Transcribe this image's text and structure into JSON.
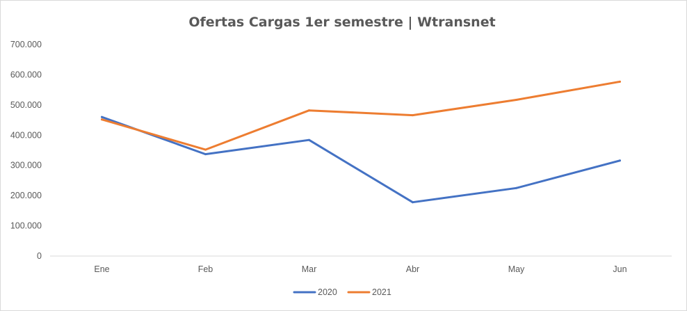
{
  "chart_data": {
    "type": "line",
    "title": "Ofertas Cargas 1er semestre | Wtransnet",
    "xlabel": "",
    "ylabel": "",
    "categories": [
      "Ene",
      "Feb",
      "Mar",
      "Abr",
      "May",
      "Jun"
    ],
    "ylim": [
      0,
      700000
    ],
    "yticks": [
      0,
      100000,
      200000,
      300000,
      400000,
      500000,
      600000,
      700000
    ],
    "ytick_labels": [
      "0",
      "100.000",
      "200.000",
      "300.000",
      "400.000",
      "500.000",
      "600.000",
      "700.000"
    ],
    "grid": false,
    "legend_position": "bottom",
    "series": [
      {
        "name": "2020",
        "color": "#4472C4",
        "values": [
          460000,
          337000,
          384000,
          178000,
          225000,
          316000
        ]
      },
      {
        "name": "2021",
        "color": "#ED7D31",
        "values": [
          452000,
          352000,
          482000,
          466000,
          517000,
          577000
        ]
      }
    ]
  }
}
